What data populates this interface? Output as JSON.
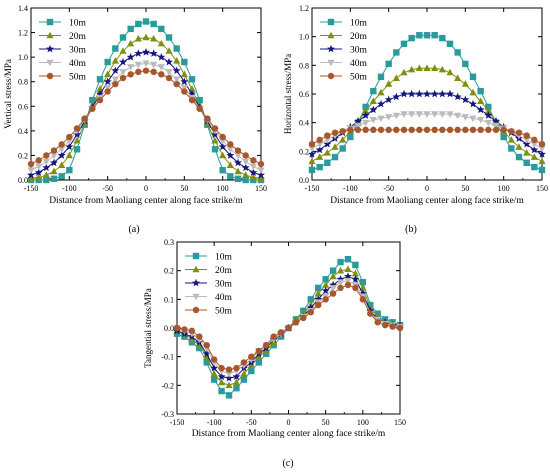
{
  "chart_data": [
    {
      "type": "line",
      "panel_label": "(a)",
      "xlabel": "Distance from Maoliang center along face strike/m",
      "ylabel": "Vertical stress/MPa",
      "xlim": [
        -150,
        150
      ],
      "ylim": [
        0,
        1.4
      ],
      "xticks": [
        -150,
        -100,
        -50,
        0,
        50,
        100,
        150
      ],
      "yticks": [
        0.0,
        0.2,
        0.4,
        0.6,
        0.8,
        1.0,
        1.2,
        1.4
      ],
      "ytick_labels": [
        "0.0",
        "0.2",
        "0.4",
        "0.6",
        "0.8",
        "1.0",
        "1.2",
        "1.4"
      ],
      "grid": false,
      "legend_position": "top-left",
      "x": [
        -150,
        -140,
        -130,
        -120,
        -110,
        -100,
        -90,
        -80,
        -70,
        -60,
        -50,
        -40,
        -30,
        -20,
        -10,
        0,
        10,
        20,
        30,
        40,
        50,
        60,
        70,
        80,
        90,
        100,
        110,
        120,
        130,
        140,
        150
      ],
      "series": [
        {
          "name": "10m",
          "values": [
            0.0,
            0.0,
            0.0,
            0.01,
            0.03,
            0.08,
            0.25,
            0.45,
            0.65,
            0.82,
            0.96,
            1.07,
            1.16,
            1.23,
            1.27,
            1.29,
            1.27,
            1.23,
            1.16,
            1.07,
            0.96,
            0.82,
            0.65,
            0.45,
            0.25,
            0.08,
            0.03,
            0.01,
            0.0,
            0.0,
            0.0
          ]
        },
        {
          "name": "20m",
          "values": [
            0.01,
            0.02,
            0.04,
            0.07,
            0.12,
            0.2,
            0.32,
            0.46,
            0.6,
            0.74,
            0.86,
            0.97,
            1.05,
            1.11,
            1.15,
            1.16,
            1.15,
            1.11,
            1.05,
            0.97,
            0.86,
            0.74,
            0.6,
            0.46,
            0.32,
            0.2,
            0.12,
            0.07,
            0.04,
            0.02,
            0.01
          ]
        },
        {
          "name": "30m",
          "values": [
            0.04,
            0.06,
            0.1,
            0.14,
            0.2,
            0.27,
            0.37,
            0.48,
            0.59,
            0.7,
            0.8,
            0.89,
            0.96,
            1.0,
            1.03,
            1.04,
            1.03,
            1.0,
            0.96,
            0.89,
            0.8,
            0.7,
            0.59,
            0.48,
            0.37,
            0.27,
            0.2,
            0.14,
            0.1,
            0.06,
            0.04
          ]
        },
        {
          "name": "40m",
          "values": [
            0.08,
            0.11,
            0.15,
            0.2,
            0.25,
            0.32,
            0.4,
            0.49,
            0.58,
            0.67,
            0.75,
            0.82,
            0.88,
            0.92,
            0.94,
            0.95,
            0.94,
            0.92,
            0.88,
            0.82,
            0.75,
            0.67,
            0.58,
            0.49,
            0.4,
            0.32,
            0.25,
            0.2,
            0.15,
            0.11,
            0.08
          ]
        },
        {
          "name": "50m",
          "values": [
            0.13,
            0.16,
            0.2,
            0.24,
            0.29,
            0.35,
            0.42,
            0.5,
            0.58,
            0.65,
            0.72,
            0.78,
            0.83,
            0.86,
            0.88,
            0.89,
            0.88,
            0.86,
            0.83,
            0.78,
            0.72,
            0.65,
            0.58,
            0.5,
            0.42,
            0.35,
            0.29,
            0.24,
            0.2,
            0.16,
            0.13
          ]
        }
      ]
    },
    {
      "type": "line",
      "panel_label": "(b)",
      "xlabel": "Distance from Maoliang center along face strike/m",
      "ylabel": "Horizontal stress/MPa",
      "xlim": [
        -150,
        150
      ],
      "ylim": [
        0,
        1.2
      ],
      "xticks": [
        -150,
        -100,
        -50,
        0,
        50,
        100,
        150
      ],
      "yticks": [
        0.0,
        0.2,
        0.4,
        0.6,
        0.8,
        1.0,
        1.2
      ],
      "ytick_labels": [
        "0.0",
        "0.2",
        "0.4",
        "0.6",
        "0.8",
        "1.0",
        "1.2"
      ],
      "grid": false,
      "legend_position": "top-left",
      "x": [
        -150,
        -140,
        -130,
        -120,
        -110,
        -100,
        -90,
        -80,
        -70,
        -60,
        -50,
        -40,
        -30,
        -20,
        -10,
        0,
        10,
        20,
        30,
        40,
        50,
        60,
        70,
        80,
        90,
        100,
        110,
        120,
        130,
        140,
        150
      ],
      "series": [
        {
          "name": "10m",
          "values": [
            0.07,
            0.09,
            0.12,
            0.16,
            0.22,
            0.3,
            0.4,
            0.51,
            0.62,
            0.72,
            0.81,
            0.89,
            0.95,
            0.99,
            1.01,
            1.01,
            1.01,
            0.99,
            0.95,
            0.89,
            0.81,
            0.72,
            0.62,
            0.51,
            0.4,
            0.3,
            0.22,
            0.16,
            0.12,
            0.09,
            0.07
          ]
        },
        {
          "name": "20m",
          "values": [
            0.13,
            0.16,
            0.19,
            0.23,
            0.28,
            0.34,
            0.41,
            0.48,
            0.55,
            0.61,
            0.67,
            0.71,
            0.75,
            0.77,
            0.78,
            0.78,
            0.78,
            0.77,
            0.75,
            0.71,
            0.67,
            0.61,
            0.55,
            0.48,
            0.41,
            0.34,
            0.28,
            0.23,
            0.19,
            0.16,
            0.13
          ]
        },
        {
          "name": "30m",
          "values": [
            0.18,
            0.21,
            0.25,
            0.29,
            0.33,
            0.37,
            0.41,
            0.45,
            0.49,
            0.53,
            0.56,
            0.58,
            0.6,
            0.6,
            0.6,
            0.6,
            0.6,
            0.6,
            0.6,
            0.58,
            0.56,
            0.53,
            0.49,
            0.45,
            0.41,
            0.37,
            0.33,
            0.29,
            0.25,
            0.21,
            0.18
          ]
        },
        {
          "name": "40m",
          "values": [
            0.22,
            0.25,
            0.28,
            0.31,
            0.34,
            0.36,
            0.38,
            0.4,
            0.42,
            0.43,
            0.44,
            0.45,
            0.46,
            0.46,
            0.46,
            0.46,
            0.46,
            0.46,
            0.46,
            0.45,
            0.44,
            0.43,
            0.42,
            0.4,
            0.38,
            0.36,
            0.34,
            0.31,
            0.28,
            0.25,
            0.22
          ]
        },
        {
          "name": "50m",
          "values": [
            0.25,
            0.28,
            0.31,
            0.33,
            0.34,
            0.35,
            0.35,
            0.35,
            0.35,
            0.35,
            0.35,
            0.35,
            0.35,
            0.35,
            0.35,
            0.35,
            0.35,
            0.35,
            0.35,
            0.35,
            0.35,
            0.35,
            0.35,
            0.35,
            0.35,
            0.35,
            0.34,
            0.33,
            0.31,
            0.28,
            0.25
          ]
        }
      ]
    },
    {
      "type": "line",
      "panel_label": "(c)",
      "xlabel": "Distance from Maoliang center along face strike/m",
      "ylabel": "Tangential stress/MPa",
      "xlim": [
        -150,
        150
      ],
      "ylim": [
        -0.3,
        0.3
      ],
      "xticks": [
        -150,
        -100,
        -50,
        0,
        50,
        100,
        150
      ],
      "yticks": [
        -0.3,
        -0.2,
        -0.1,
        0.0,
        0.1,
        0.2,
        0.3
      ],
      "ytick_labels": [
        "-0.3",
        "-0.2",
        "-0.1",
        "0.0",
        "0.1",
        "0.2",
        "0.3"
      ],
      "grid": false,
      "legend_position": "top-left",
      "x": [
        -150,
        -140,
        -130,
        -120,
        -110,
        -100,
        -90,
        -80,
        -70,
        -60,
        -50,
        -40,
        -30,
        -20,
        -10,
        0,
        10,
        20,
        30,
        40,
        50,
        60,
        70,
        80,
        90,
        100,
        110,
        120,
        130,
        140,
        150
      ],
      "series": [
        {
          "name": "10m",
          "values": [
            -0.02,
            -0.03,
            -0.05,
            -0.07,
            -0.12,
            -0.18,
            -0.22,
            -0.235,
            -0.21,
            -0.18,
            -0.15,
            -0.12,
            -0.09,
            -0.06,
            -0.03,
            0.0,
            0.03,
            0.06,
            0.1,
            0.14,
            0.17,
            0.2,
            0.23,
            0.24,
            0.22,
            0.16,
            0.08,
            0.05,
            0.03,
            0.02,
            0.01
          ]
        },
        {
          "name": "20m",
          "values": [
            -0.01,
            -0.02,
            -0.04,
            -0.06,
            -0.1,
            -0.16,
            -0.19,
            -0.2,
            -0.19,
            -0.16,
            -0.13,
            -0.1,
            -0.08,
            -0.05,
            -0.02,
            0.0,
            0.03,
            0.05,
            0.08,
            0.12,
            0.15,
            0.18,
            0.2,
            0.205,
            0.19,
            0.14,
            0.07,
            0.04,
            0.02,
            0.015,
            0.01
          ]
        },
        {
          "name": "30m",
          "values": [
            -0.01,
            -0.02,
            -0.03,
            -0.05,
            -0.09,
            -0.14,
            -0.17,
            -0.175,
            -0.17,
            -0.14,
            -0.12,
            -0.09,
            -0.07,
            -0.04,
            -0.02,
            0.0,
            0.02,
            0.04,
            0.07,
            0.1,
            0.13,
            0.15,
            0.17,
            0.18,
            0.17,
            0.12,
            0.06,
            0.03,
            0.02,
            0.01,
            0.01
          ]
        },
        {
          "name": "40m",
          "values": [
            0.0,
            -0.01,
            -0.02,
            -0.04,
            -0.07,
            -0.12,
            -0.15,
            -0.16,
            -0.15,
            -0.13,
            -0.11,
            -0.08,
            -0.06,
            -0.04,
            -0.02,
            0.0,
            0.02,
            0.04,
            0.06,
            0.09,
            0.11,
            0.14,
            0.16,
            0.165,
            0.15,
            0.11,
            0.05,
            0.03,
            0.015,
            0.01,
            0.005
          ]
        },
        {
          "name": "50m",
          "values": [
            0.0,
            -0.005,
            -0.01,
            -0.03,
            -0.06,
            -0.11,
            -0.14,
            -0.145,
            -0.14,
            -0.12,
            -0.1,
            -0.08,
            -0.06,
            -0.03,
            -0.015,
            0.0,
            0.02,
            0.035,
            0.055,
            0.08,
            0.1,
            0.12,
            0.14,
            0.15,
            0.14,
            0.1,
            0.05,
            0.02,
            0.01,
            0.005,
            0.0
          ]
        }
      ]
    }
  ],
  "series_style": [
    {
      "color": "#2a9b9d",
      "marker": "square"
    },
    {
      "color": "#7f8f14",
      "marker": "triangle-up"
    },
    {
      "color": "#16167d",
      "marker": "star"
    },
    {
      "color": "#bbbbbb",
      "marker": "triangle-down"
    },
    {
      "color": "#a8562b",
      "marker": "circle"
    }
  ]
}
